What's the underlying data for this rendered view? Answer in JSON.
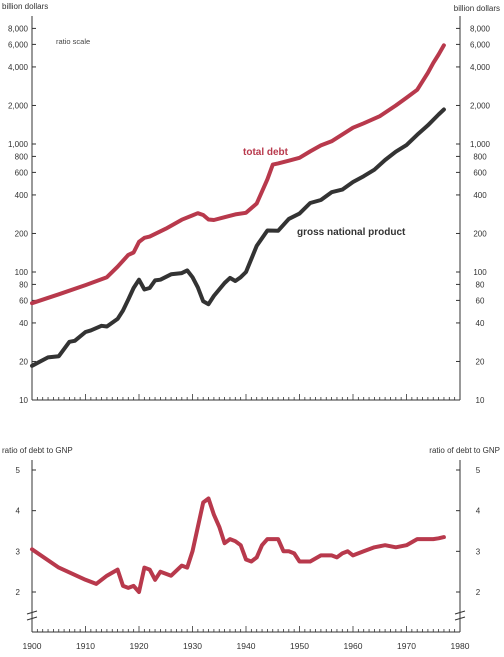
{
  "chart_data": [
    {
      "type": "line",
      "scale": "log",
      "y_label_left": "billion dollars",
      "y_label_right": "billion dollars",
      "scale_note": "ratio scale",
      "yticks": [
        10,
        20,
        40,
        60,
        80,
        100,
        200,
        400,
        600,
        800,
        1000,
        2000,
        4000,
        6000,
        8000
      ],
      "ytick_labels": [
        "10",
        "20",
        "40",
        "60",
        "80",
        "100",
        "200",
        "400",
        "600",
        "800",
        "1,000",
        "2,000",
        "4,000",
        "6,000",
        "8,000"
      ],
      "ylim": [
        10,
        8000
      ],
      "xlim": [
        1900,
        1980
      ],
      "grid": false,
      "series": [
        {
          "name": "total debt",
          "color": "#b8394c",
          "x": [
            1900,
            1905,
            1910,
            1914,
            1916,
            1918,
            1919,
            1920,
            1921,
            1922,
            1925,
            1928,
            1930,
            1931,
            1932,
            1933,
            1934,
            1936,
            1938,
            1940,
            1942,
            1944,
            1945,
            1946,
            1948,
            1950,
            1952,
            1954,
            1956,
            1960,
            1962,
            1965,
            1968,
            1970,
            1972,
            1974,
            1975,
            1976,
            1977
          ],
          "y": [
            57,
            67,
            79,
            91,
            110,
            136,
            142,
            172,
            185,
            189,
            218,
            256,
            277,
            288,
            279,
            257,
            255,
            268,
            282,
            290,
            343,
            530,
            690,
            705,
            740,
            780,
            875,
            975,
            1050,
            1340,
            1450,
            1650,
            2000,
            2300,
            2650,
            3600,
            4300,
            5000,
            5900
          ]
        },
        {
          "name": "gross national product",
          "color": "#333333",
          "x": [
            1900,
            1903,
            1905,
            1907,
            1908,
            1910,
            1911,
            1913,
            1914,
            1916,
            1917,
            1918,
            1919,
            1920,
            1921,
            1922,
            1923,
            1924,
            1926,
            1928,
            1929,
            1930,
            1931,
            1932,
            1933,
            1934,
            1936,
            1937,
            1938,
            1939,
            1940,
            1942,
            1944,
            1946,
            1948,
            1950,
            1952,
            1954,
            1956,
            1958,
            1960,
            1962,
            1964,
            1966,
            1968,
            1970,
            1972,
            1974,
            1976,
            1977
          ],
          "y": [
            18.5,
            21.5,
            22,
            28.5,
            29,
            34,
            35,
            38,
            37.5,
            43,
            50,
            61,
            75,
            87,
            73,
            75,
            86,
            87,
            96,
            98,
            103,
            91,
            76,
            59,
            56,
            65,
            82,
            90,
            85,
            91,
            100,
            160,
            211,
            210,
            260,
            286,
            346,
            365,
            420,
            440,
            505,
            560,
            630,
            750,
            870,
            980,
            1180,
            1400,
            1700,
            1860
          ]
        }
      ]
    },
    {
      "type": "line",
      "y_label_left": "ratio of debt to GNP",
      "y_label_right": "ratio of debt to GNP",
      "yticks": [
        2,
        3,
        4,
        5
      ],
      "ytick_labels": [
        "2",
        "3",
        "4",
        "5"
      ],
      "ylim": [
        1.5,
        5.2
      ],
      "xlim": [
        1900,
        1980
      ],
      "xticks": [
        1900,
        1910,
        1920,
        1930,
        1940,
        1950,
        1960,
        1970,
        1980
      ],
      "xtick_labels": [
        "1900",
        "1910",
        "1920",
        "1930",
        "1940",
        "1950",
        "1960",
        "1970",
        "1980"
      ],
      "grid": false,
      "series": [
        {
          "name": "",
          "color": "#b8394c",
          "x": [
            1900,
            1905,
            1910,
            1912,
            1914,
            1916,
            1917,
            1918,
            1919,
            1920,
            1921,
            1922,
            1923,
            1924,
            1925,
            1926,
            1928,
            1929,
            1930,
            1932,
            1933,
            1934,
            1935,
            1936,
            1937,
            1938,
            1939,
            1940,
            1941,
            1942,
            1943,
            1944,
            1945,
            1946,
            1947,
            1948,
            1949,
            1950,
            1952,
            1954,
            1956,
            1957,
            1958,
            1959,
            1960,
            1962,
            1964,
            1966,
            1968,
            1970,
            1972,
            1974,
            1975,
            1976,
            1977
          ],
          "y": [
            3.05,
            2.6,
            2.3,
            2.2,
            2.4,
            2.55,
            2.15,
            2.1,
            2.15,
            2.0,
            2.6,
            2.55,
            2.3,
            2.5,
            2.45,
            2.4,
            2.65,
            2.6,
            3.0,
            4.2,
            4.3,
            3.9,
            3.6,
            3.2,
            3.3,
            3.25,
            3.15,
            2.8,
            2.75,
            2.85,
            3.15,
            3.3,
            3.3,
            3.3,
            3.0,
            3.0,
            2.95,
            2.75,
            2.75,
            2.9,
            2.9,
            2.85,
            2.95,
            3.0,
            2.9,
            3.0,
            3.1,
            3.15,
            3.1,
            3.15,
            3.3,
            3.3,
            3.3,
            3.32,
            3.35
          ]
        }
      ]
    }
  ]
}
